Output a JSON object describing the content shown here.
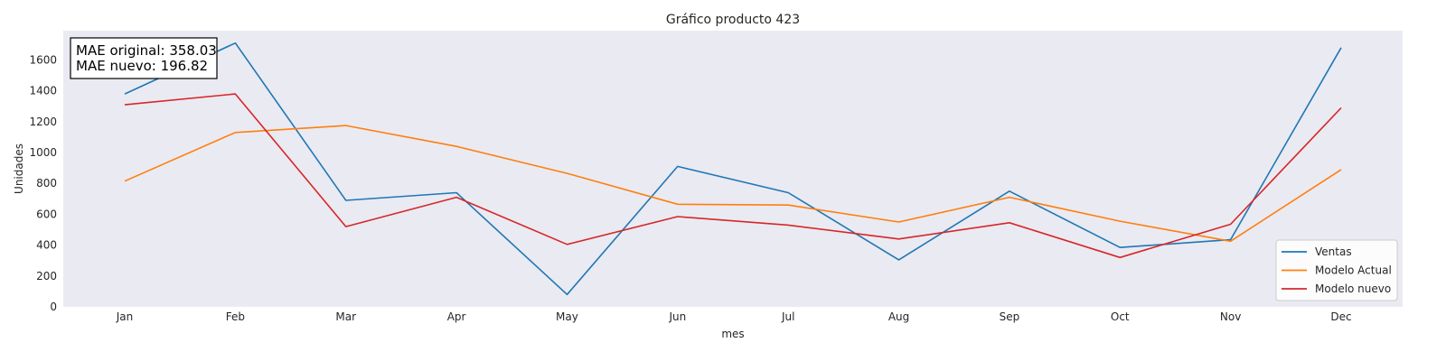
{
  "chart_data": {
    "type": "line",
    "title": "Gráfico producto 423",
    "xlabel": "mes",
    "ylabel": "Unidades",
    "categories": [
      "Jan",
      "Feb",
      "Mar",
      "Apr",
      "May",
      "Jun",
      "Jul",
      "Aug",
      "Sep",
      "Oct",
      "Nov",
      "Dec"
    ],
    "ylim": [
      0,
      1790
    ],
    "yticks": [
      0,
      200,
      400,
      600,
      800,
      1000,
      1200,
      1400,
      1600
    ],
    "grid": false,
    "legend_position": "lower-right",
    "background": "#eaeaf2",
    "series": [
      {
        "name": "Ventas",
        "color": "#1f77b4",
        "values": [
          1380,
          1710,
          690,
          740,
          80,
          910,
          740,
          305,
          750,
          385,
          435,
          1680
        ]
      },
      {
        "name": "Modelo Actual",
        "color": "#ff7f0e",
        "values": [
          815,
          1130,
          1175,
          1040,
          865,
          665,
          660,
          550,
          710,
          555,
          425,
          890
        ]
      },
      {
        "name": "Modelo nuevo",
        "color": "#d62728",
        "values": [
          1310,
          1380,
          520,
          710,
          405,
          585,
          530,
          440,
          545,
          320,
          535,
          1290
        ]
      }
    ],
    "annotation": {
      "line1": "MAE original: 358.03",
      "line2": "MAE nuevo: 196.82"
    }
  }
}
